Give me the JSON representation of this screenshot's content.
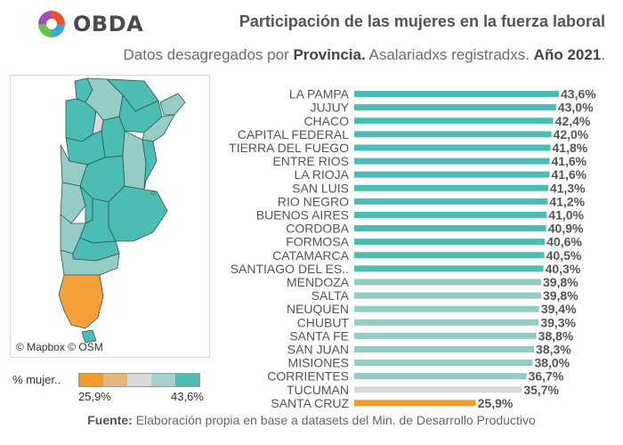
{
  "brand": {
    "name": "OBDA",
    "logo_icon": "obda-swirl-logo-icon"
  },
  "header": {
    "title": "Participación de las mujeres en la fuerza laboral",
    "subtitle_prefix": "Datos desagregados por ",
    "subtitle_bold1": "Provincia.",
    "subtitle_mid": " Asalariadxs registradxs. ",
    "subtitle_bold2": "Año 2021",
    "subtitle_suffix": "."
  },
  "map": {
    "attribution": "© Mapbox © OSM",
    "colors": {
      "high": "#4dbcb2",
      "mid": "#96ccc6",
      "low": "#d9d9d9",
      "min": "#f6a03a",
      "border": "#2b5a57"
    }
  },
  "legend": {
    "title": "% mujer..",
    "min_label": "25,9%",
    "max_label": "43,6%",
    "swatches": [
      "#f39a28",
      "#e3b77e",
      "#d9d9d9",
      "#a5d2cc",
      "#4dbcb2"
    ]
  },
  "chart_data": {
    "type": "bar",
    "orientation": "horizontal",
    "title": "Participación de las mujeres en la fuerza laboral",
    "categories": [
      "LA PAMPA",
      "JUJUY",
      "CHACO",
      "CAPITAL FEDERAL",
      "TIERRA DEL FUEGO",
      "ENTRE RIOS",
      "LA RIOJA",
      "SAN LUIS",
      "RIO NEGRO",
      "BUENOS AIRES",
      "CORDOBA",
      "FORMOSA",
      "CATAMARCA",
      "SANTIAGO DEL ES..",
      "MENDOZA",
      "SALTA",
      "NEUQUEN",
      "CHUBUT",
      "SANTA FE",
      "SAN JUAN",
      "MISIONES",
      "CORRIENTES",
      "TUCUMAN",
      "SANTA CRUZ"
    ],
    "values": [
      43.6,
      43.0,
      42.4,
      42.0,
      41.8,
      41.6,
      41.6,
      41.3,
      41.2,
      41.0,
      40.9,
      40.6,
      40.5,
      40.3,
      39.8,
      39.8,
      39.4,
      39.3,
      38.8,
      38.3,
      38.0,
      36.7,
      35.7,
      25.9
    ],
    "value_labels": [
      "43,6%",
      "43,0%",
      "42,4%",
      "42,0%",
      "41,8%",
      "41,6%",
      "41,6%",
      "41,3%",
      "41,2%",
      "41,0%",
      "40,9%",
      "40,6%",
      "40,5%",
      "40,3%",
      "39,8%",
      "39,8%",
      "39,4%",
      "39,3%",
      "38,8%",
      "38,3%",
      "38,0%",
      "36,7%",
      "35,7%",
      "25,9%"
    ],
    "bar_colors": [
      "#4dbcb2",
      "#4dbcb2",
      "#4dbcb2",
      "#4dbcb2",
      "#4dbcb2",
      "#4dbcb2",
      "#4dbcb2",
      "#4dbcb2",
      "#4dbcb2",
      "#4dbcb2",
      "#4dbcb2",
      "#4dbcb2",
      "#4dbcb2",
      "#4dbcb2",
      "#93cbc5",
      "#93cbc5",
      "#93cbc5",
      "#93cbc5",
      "#93cbc5",
      "#93cbc5",
      "#93cbc5",
      "#93cbc5",
      "#d9d9d9",
      "#f39a28"
    ],
    "xlim": [
      0,
      43.6
    ],
    "xlabel": "",
    "ylabel": ""
  },
  "footer": {
    "source_label": "Fuente:",
    "source_text": " Elaboración propia en base a datasets del Min. de Desarrollo Productivo"
  }
}
